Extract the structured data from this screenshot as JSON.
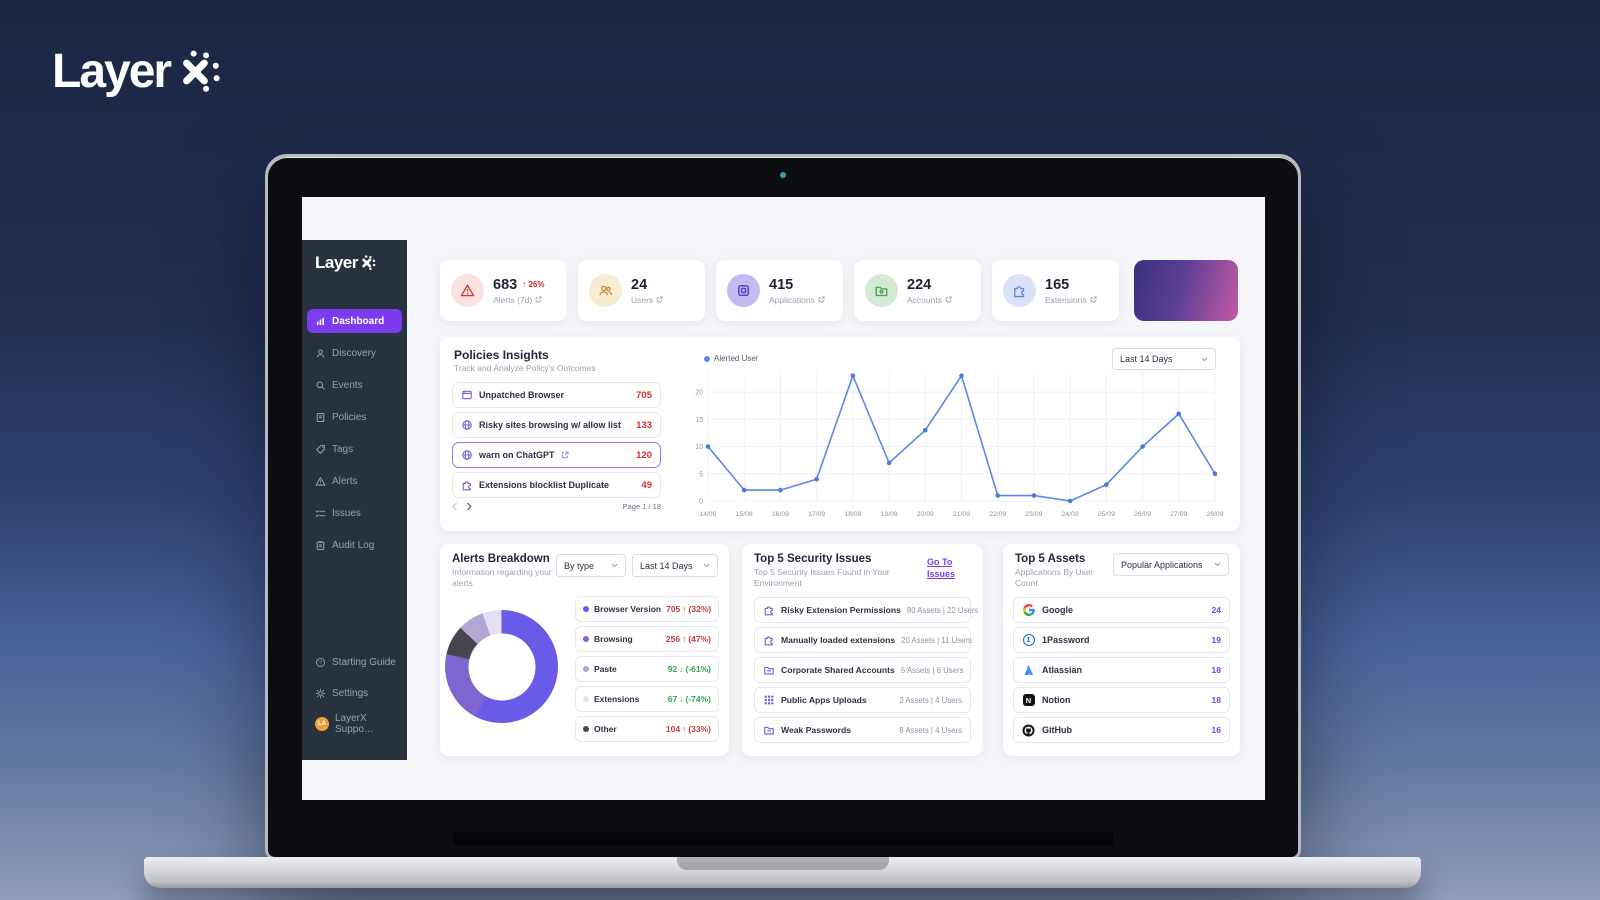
{
  "brand": {
    "logo_text": "Layer",
    "logo_x": "X"
  },
  "sidebar": {
    "logo_text": "Layer",
    "items": [
      {
        "label": "Dashboard",
        "active": true
      },
      {
        "label": "Discovery"
      },
      {
        "label": "Events"
      },
      {
        "label": "Policies"
      },
      {
        "label": "Tags"
      },
      {
        "label": "Alerts"
      },
      {
        "label": "Issues"
      },
      {
        "label": "Audit Log"
      }
    ],
    "footer_items": [
      {
        "label": "Starting Guide"
      },
      {
        "label": "Settings"
      },
      {
        "label": "LayerX Suppo…",
        "avatar_initials": "LA"
      }
    ]
  },
  "stat_cards": [
    {
      "value": "683",
      "delta_arrow": "↑",
      "delta": "26%",
      "label": "Alerts (7d)",
      "icon_bg": "#f9e2e1",
      "icon_color": "#c0443f"
    },
    {
      "value": "24",
      "label": "Users",
      "icon_bg": "#f8ecd4",
      "icon_color": "#c3903a"
    },
    {
      "value": "415",
      "label": "Applications",
      "icon_bg": "#c6baf5",
      "icon_color": "#5746c0"
    },
    {
      "value": "224",
      "label": "Accounts",
      "icon_bg": "#d2ead2",
      "icon_color": "#57a05b"
    },
    {
      "value": "165",
      "label": "Extensions",
      "icon_bg": "#dae2f7",
      "icon_color": "#6f86d6"
    }
  ],
  "policies": {
    "title": "Policies Insights",
    "subtitle": "Track and Analyze Policy's Outcomes",
    "legend_label": "Alerted User",
    "legend_color": "#5b87e6",
    "range_dropdown": "Last 14 Days",
    "rows": [
      {
        "label": "Unpatched Browser",
        "value": "705"
      },
      {
        "label": "Risky sites browsing w/ allow list",
        "value": "133"
      },
      {
        "label": "warn on ChatGPT",
        "value": "120"
      },
      {
        "label": "Extensions blocklist Duplicate",
        "value": "49"
      }
    ],
    "pagination": "Page 1 / 18",
    "chart": {
      "type": "line",
      "series_name": "Alerted User",
      "x": [
        "14/09",
        "15/09",
        "16/09",
        "17/09",
        "18/09",
        "19/09",
        "20/09",
        "21/09",
        "22/09",
        "23/09",
        "24/09",
        "25/09",
        "26/09",
        "27/09",
        "28/09"
      ],
      "values": [
        10,
        2,
        2,
        4,
        23,
        7,
        13,
        23,
        1,
        1,
        0,
        3,
        10,
        16,
        5
      ],
      "y_ticks": [
        0,
        5,
        10,
        15,
        20
      ],
      "line_color": "#5b87e6",
      "grid": true
    }
  },
  "alerts_breakdown": {
    "title": "Alerts Breakdown",
    "subtitle": "Information regarding your alerts",
    "type_dropdown": "By type",
    "range_dropdown": "Last 14 Days",
    "donut_order": [
      0,
      1,
      4,
      2,
      3
    ],
    "rows": [
      {
        "label": "Browser Version",
        "value": "705",
        "num": 705,
        "arrow": "↑",
        "pct": "(32%)",
        "trend_color": "#c43d3d",
        "dot": "#6a5ae8"
      },
      {
        "label": "Browsing",
        "value": "256",
        "num": 256,
        "arrow": "↑",
        "pct": "(47%)",
        "trend_color": "#c43d3d",
        "dot": "#7d66cf"
      },
      {
        "label": "Paste",
        "value": "92",
        "num": 92,
        "arrow": "↓",
        "pct": "(-61%)",
        "trend_color": "#35a854",
        "dot": "#b3a8d4"
      },
      {
        "label": "Extensions",
        "value": "67",
        "num": 67,
        "arrow": "↓",
        "pct": "(-74%)",
        "trend_color": "#35a854",
        "dot": "#e4e0f2"
      },
      {
        "label": "Other",
        "value": "104",
        "num": 104,
        "arrow": "↑",
        "pct": "(33%)",
        "trend_color": "#c43d3d",
        "dot": "#46464e"
      }
    ]
  },
  "security_issues": {
    "title": "Top 5 Security Issues",
    "subtitle": "Top 5 Security Issues Found in Your Environment",
    "link_label": "Go To Issues",
    "rows": [
      {
        "label": "Risky Extension Permissions",
        "meta": "80 Assets | 22 Users"
      },
      {
        "label": "Manually loaded extensions",
        "meta": "20 Assets | 11 Users"
      },
      {
        "label": "Corporate Shared Accounts",
        "meta": "5 Assets | 6 Users"
      },
      {
        "label": "Public Apps Uploads",
        "meta": "2 Assets | 4 Users"
      },
      {
        "label": "Weak Passwords",
        "meta": "8 Assets | 4 Users"
      }
    ]
  },
  "top_assets": {
    "title": "Top 5 Assets",
    "subtitle": "Applications By User Count",
    "dropdown": "Popular Applications",
    "count_color": "#7c3aed",
    "rows": [
      {
        "name": "Google",
        "count": "24"
      },
      {
        "name": "1Password",
        "count": "19"
      },
      {
        "name": "Atlassian",
        "count": "18"
      },
      {
        "name": "Notion",
        "count": "18"
      },
      {
        "name": "GitHub",
        "count": "16"
      }
    ]
  }
}
